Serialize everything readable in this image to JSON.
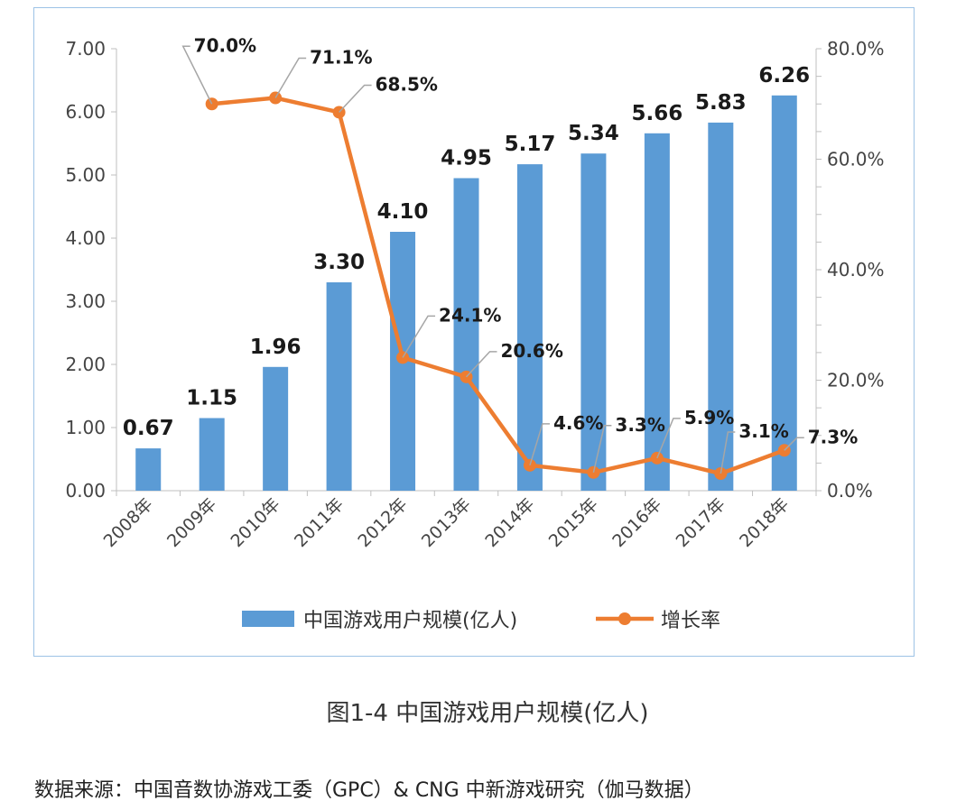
{
  "chart_data": {
    "type": "bar+line",
    "categories": [
      "2008年",
      "2009年",
      "2010年",
      "2011年",
      "2012年",
      "2013年",
      "2014年",
      "2015年",
      "2016年",
      "2017年",
      "2018年"
    ],
    "series": [
      {
        "name": "中国游戏用户规模(亿人)",
        "type": "bar",
        "axis": "left",
        "color": "#5b9bd5",
        "values": [
          0.67,
          1.15,
          1.96,
          3.3,
          4.1,
          4.95,
          5.17,
          5.34,
          5.66,
          5.83,
          6.26
        ],
        "labels": [
          "0.67",
          "1.15",
          "1.96",
          "3.30",
          "4.10",
          "4.95",
          "5.17",
          "5.34",
          "5.66",
          "5.83",
          "6.26"
        ]
      },
      {
        "name": "增长率",
        "type": "line",
        "axis": "right",
        "color": "#ed7d31",
        "values": [
          null,
          70.0,
          71.1,
          68.5,
          24.1,
          20.6,
          4.6,
          3.3,
          5.9,
          3.1,
          7.3
        ],
        "labels": [
          null,
          "70.0%",
          "71.1%",
          "68.5%",
          "24.1%",
          "20.6%",
          "4.6%",
          "3.3%",
          "5.9%",
          "3.1%",
          "7.3%"
        ]
      }
    ],
    "left_axis": {
      "min": 0,
      "max": 7,
      "step": 1,
      "tick_labels": [
        "0.00",
        "1.00",
        "2.00",
        "3.00",
        "4.00",
        "5.00",
        "6.00",
        "7.00"
      ]
    },
    "right_axis": {
      "min": 0,
      "max": 80,
      "step": 20,
      "tick_labels": [
        "0.0%",
        "20.0%",
        "40.0%",
        "60.0%",
        "80.0%"
      ]
    },
    "legend_position": "bottom",
    "grid": false
  },
  "caption": "图1-4  中国游戏用户规模(亿人)",
  "source": "数据来源：中国音数协游戏工委（GPC）& CNG 中新游戏研究（伽马数据）"
}
